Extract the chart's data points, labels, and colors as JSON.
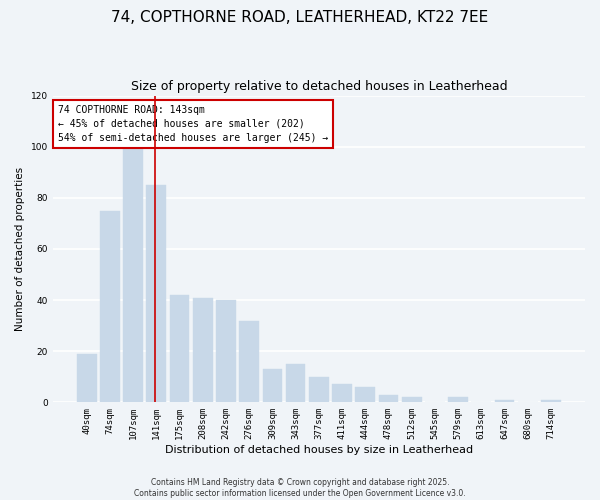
{
  "title": "74, COPTHORNE ROAD, LEATHERHEAD, KT22 7EE",
  "subtitle": "Size of property relative to detached houses in Leatherhead",
  "xlabel": "Distribution of detached houses by size in Leatherhead",
  "ylabel": "Number of detached properties",
  "bar_labels": [
    "40sqm",
    "74sqm",
    "107sqm",
    "141sqm",
    "175sqm",
    "208sqm",
    "242sqm",
    "276sqm",
    "309sqm",
    "343sqm",
    "377sqm",
    "411sqm",
    "444sqm",
    "478sqm",
    "512sqm",
    "545sqm",
    "579sqm",
    "613sqm",
    "647sqm",
    "680sqm",
    "714sqm"
  ],
  "bar_values": [
    19,
    75,
    101,
    85,
    42,
    41,
    40,
    32,
    13,
    15,
    10,
    7,
    6,
    3,
    2,
    0,
    2,
    0,
    1,
    0,
    1
  ],
  "bar_color": "#c8d8e8",
  "bar_edge_color": "#a0b8cc",
  "highlight_line_index": 3,
  "highlight_line_color": "#cc0000",
  "ylim": [
    0,
    120
  ],
  "yticks": [
    0,
    20,
    40,
    60,
    80,
    100,
    120
  ],
  "annotation_title": "74 COPTHORNE ROAD: 143sqm",
  "annotation_line1": "← 45% of detached houses are smaller (202)",
  "annotation_line2": "54% of semi-detached houses are larger (245) →",
  "annotation_box_facecolor": "#ffffff",
  "annotation_box_edgecolor": "#cc0000",
  "footer_line1": "Contains HM Land Registry data © Crown copyright and database right 2025.",
  "footer_line2": "Contains public sector information licensed under the Open Government Licence v3.0.",
  "bg_color": "#f0f4f8",
  "grid_color": "#ffffff",
  "title_fontsize": 11,
  "subtitle_fontsize": 9,
  "xlabel_fontsize": 8,
  "ylabel_fontsize": 7.5,
  "tick_fontsize": 6.5,
  "ann_fontsize": 7,
  "footer_fontsize": 5.5
}
